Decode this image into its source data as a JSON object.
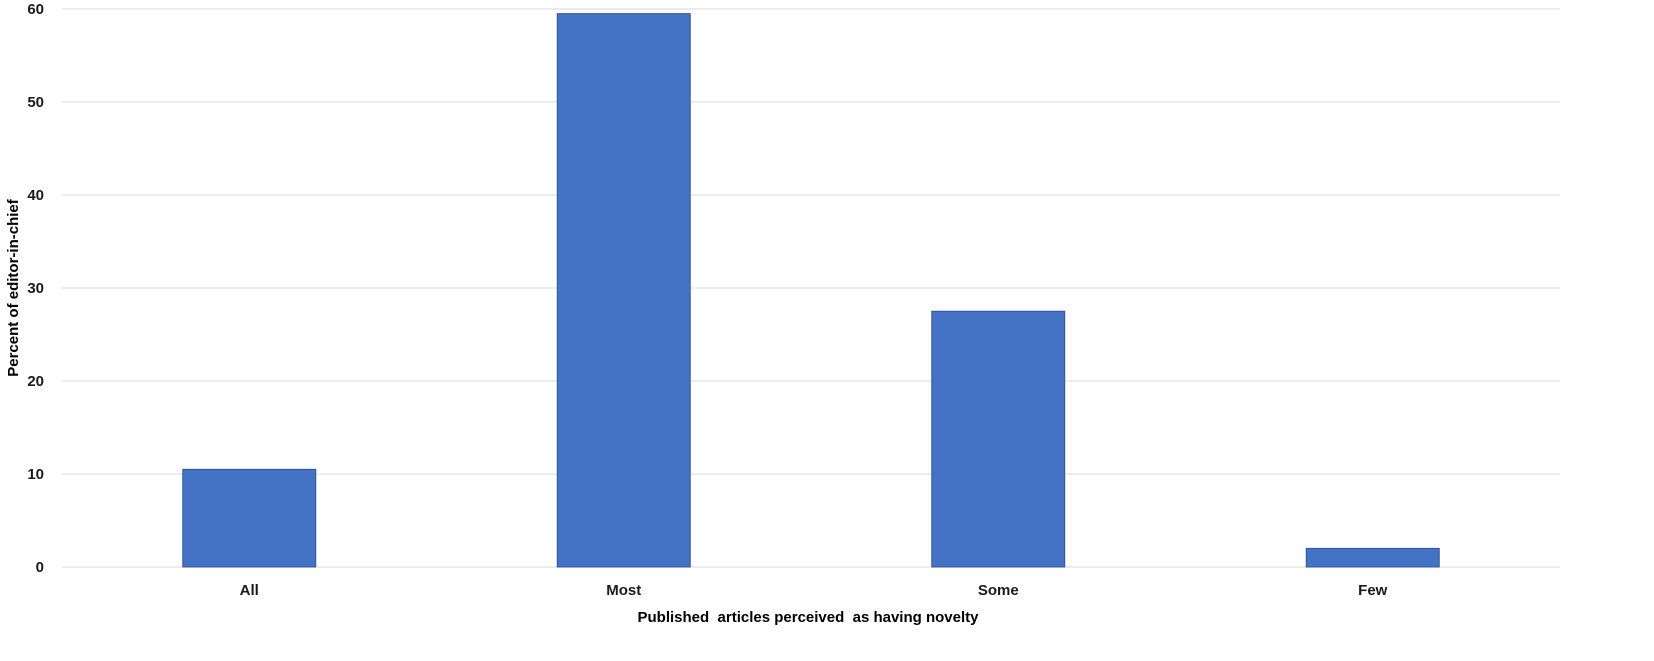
{
  "chart_data": {
    "type": "bar",
    "categories": [
      "All",
      "Most",
      "Some",
      "Few"
    ],
    "values": [
      10.5,
      59.5,
      27.5,
      2.0
    ],
    "xlabel": "Published  articles perceived  as having novelty",
    "ylabel": "Percent of editor-in-chief",
    "ylim": [
      0,
      60
    ],
    "yticks": [
      0,
      10,
      20,
      30,
      40,
      50,
      60
    ],
    "grid": true,
    "legend": "none",
    "bar_color": "#4472c4"
  }
}
